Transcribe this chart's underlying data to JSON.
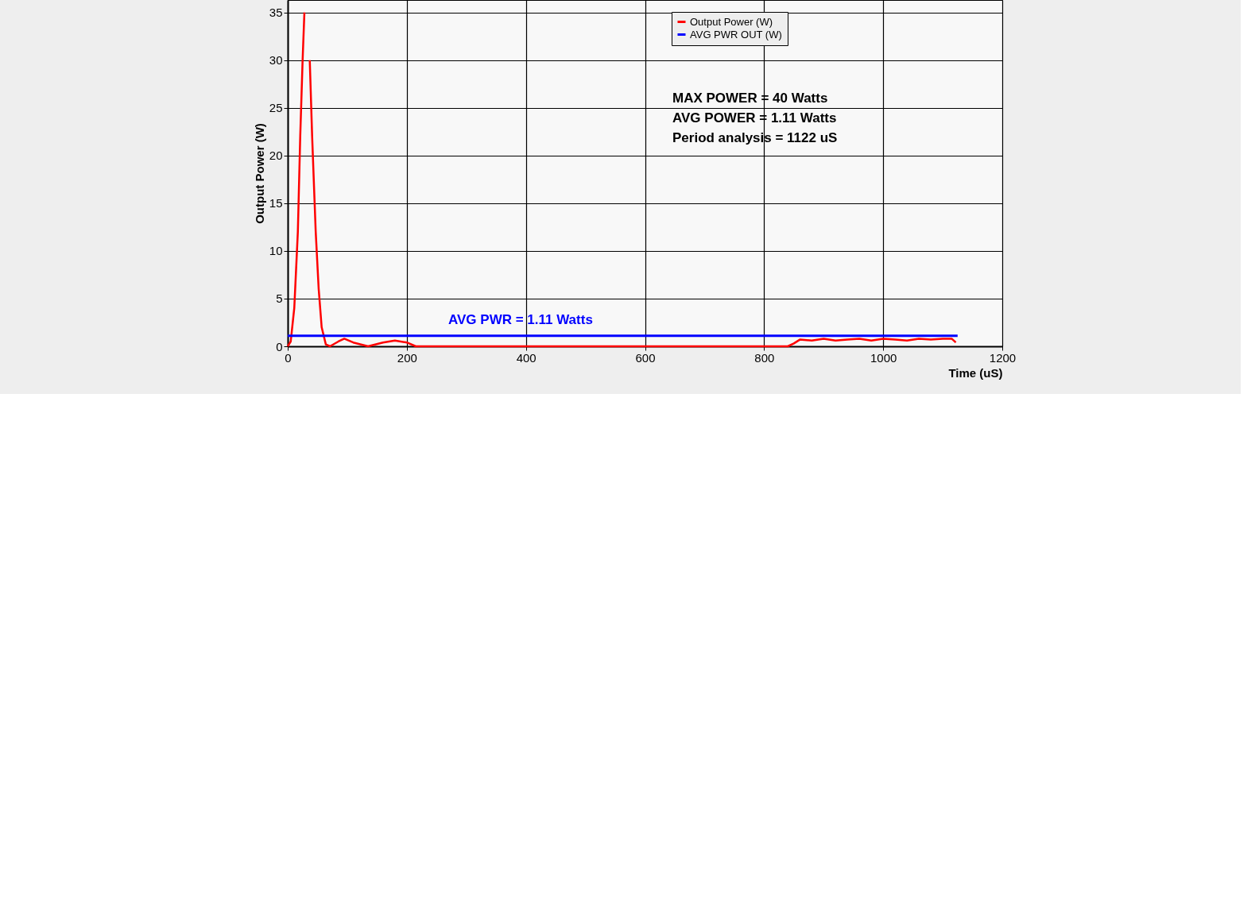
{
  "chart_data": {
    "type": "line",
    "xlabel": "Time (uS)",
    "ylabel": "Output Power (W)",
    "xlim": [
      0,
      1200
    ],
    "xticks": [
      0,
      200,
      400,
      600,
      800,
      1000,
      1200
    ],
    "ylim": [
      0,
      36.3
    ],
    "yticks": [
      0,
      5,
      10,
      15,
      20,
      25,
      30,
      35
    ],
    "grid": true,
    "legend": "top right",
    "line_style": "solid",
    "marker": "none",
    "series": [
      {
        "name": "Output Power (W)",
        "color": "#ff0000",
        "x": [
          0,
          5,
          11,
          17,
          21,
          25,
          28,
          30,
          33,
          36,
          37,
          41,
          47,
          52,
          57,
          64,
          71,
          85,
          95,
          110,
          135,
          160,
          180,
          200,
          215,
          300,
          500,
          700,
          840,
          850,
          860,
          880,
          900,
          920,
          940,
          960,
          980,
          1000,
          1020,
          1040,
          1060,
          1080,
          1100,
          1115,
          1122
        ],
        "values": [
          0,
          0.5,
          4,
          12,
          22,
          30,
          35,
          null,
          null,
          null,
          30,
          22,
          12,
          6,
          2,
          0.2,
          0,
          0.5,
          0.8,
          0.4,
          0,
          0.4,
          0.6,
          0.4,
          0,
          0,
          0,
          0,
          0,
          0.3,
          0.7,
          0.6,
          0.8,
          0.6,
          0.7,
          0.8,
          0.6,
          0.8,
          0.7,
          0.6,
          0.8,
          0.7,
          0.8,
          0.8,
          0.4
        ]
      },
      {
        "name": "AVG PWR OUT (W)",
        "color": "#0000ff",
        "x": [
          0,
          1125
        ],
        "values": [
          1.11,
          1.11
        ]
      }
    ],
    "annotations": [
      {
        "text": "AVG PWR = 1.11 Watts",
        "x": 391,
        "y": 1.11
      },
      "MAX POWER = 40 Watts",
      "AVG POWER = 1.11 Watts",
      "Period analysis = 1122 uS"
    ]
  }
}
